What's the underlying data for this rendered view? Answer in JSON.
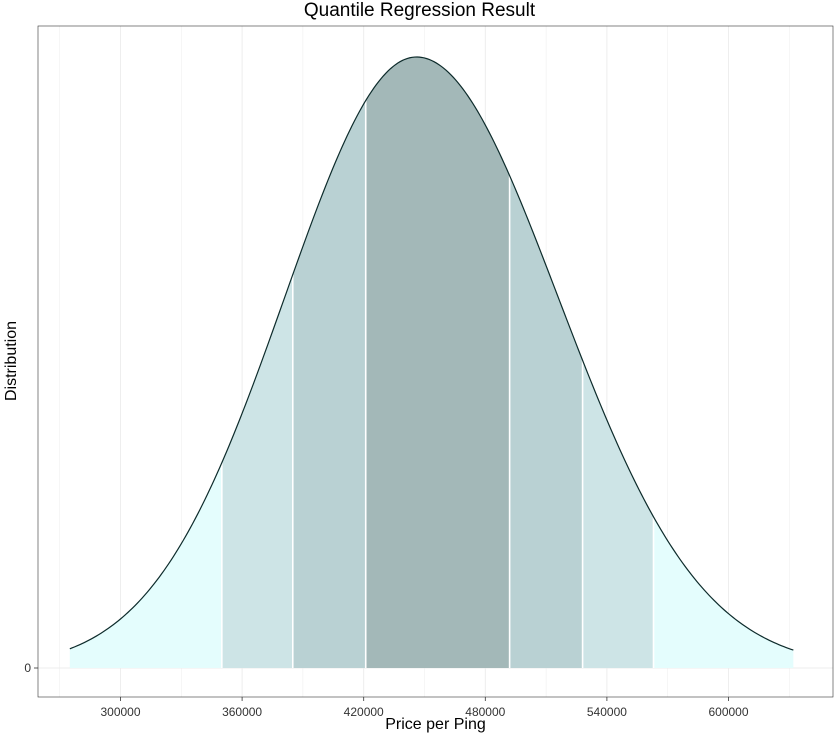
{
  "chart_data": {
    "type": "area",
    "title": "Quantile Regression Result",
    "xlabel": "Price per Ping",
    "ylabel": "Distribution",
    "xlim": [
      260000,
      630000
    ],
    "x_ticks": [
      300000,
      360000,
      420000,
      480000,
      540000,
      600000
    ],
    "x_tick_labels": [
      "300000",
      "360000",
      "420000",
      "480000",
      "540000",
      "600000"
    ],
    "y_ticks": [
      0
    ],
    "y_tick_labels": [
      "0"
    ],
    "distribution": {
      "x_start": 275000,
      "x_end": 632000,
      "mode": 446000,
      "sd_left": 65000,
      "sd_right": 70000
    },
    "quantile_cutoffs": [
      350000,
      385000,
      421000,
      492000,
      528000,
      563000
    ],
    "band_colors": [
      "#e4fdfd",
      "#cde4e6",
      "#b9d1d3",
      "#a3b8b8"
    ],
    "grid": true,
    "legend": "none"
  }
}
